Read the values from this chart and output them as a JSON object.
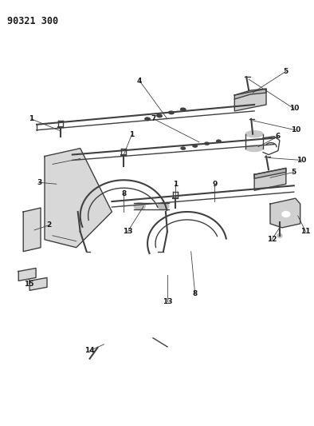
{
  "title": "90321 300",
  "bg_color": "#ffffff",
  "line_color": "#404040",
  "text_color": "#1a1a1a",
  "fig_width": 3.94,
  "fig_height": 5.33,
  "dpi": 100
}
